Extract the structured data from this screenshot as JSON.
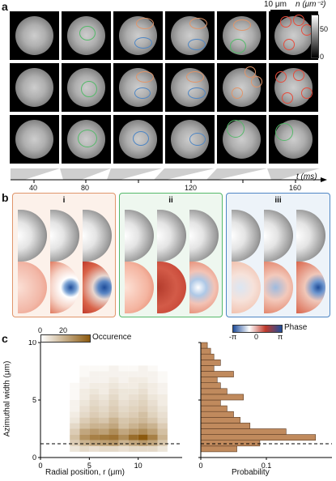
{
  "panel_a": {
    "letter": "a",
    "scale_bar": "10 μm",
    "colorbar": {
      "title": "n (μm⁻²)",
      "ticks": [
        "50",
        "0"
      ]
    },
    "axis": {
      "label": "t (ms)",
      "ticks": [
        "40",
        "80",
        "120",
        "160"
      ]
    }
  },
  "panel_b": {
    "letter": "b",
    "subpanels": [
      {
        "label": "i",
        "border": "#e0956a",
        "bg": "#fcf1ea"
      },
      {
        "label": "ii",
        "border": "#55b96a",
        "bg": "#eef7ef"
      },
      {
        "label": "iii",
        "border": "#4e86c4",
        "bg": "#edf3f9"
      }
    ],
    "phase_bar": {
      "title": "Phase",
      "ticks": [
        "-π",
        "0",
        "π"
      ]
    }
  },
  "panel_c": {
    "letter": "c",
    "occurrence_bar": {
      "title": "Occurence",
      "ticks": [
        "0",
        "20"
      ]
    },
    "colors": {
      "bar": "#c08a5d",
      "bar_edge": "#5a3a22"
    },
    "chart_data": [
      {
        "type": "heatmap",
        "xlabel": "Radial position, r (μm)",
        "ylabel": "Azimuthal width (μm)",
        "xlim": [
          0,
          14.5
        ],
        "ylim": [
          0,
          10
        ],
        "xticks": [
          "0",
          "5",
          "10"
        ],
        "yticks": [
          "0",
          "5",
          "10"
        ],
        "x_bins": [
          3,
          4,
          5,
          6,
          7,
          8,
          9,
          10,
          11,
          12,
          13
        ],
        "y_bins": [
          0.5,
          1.0,
          1.5,
          2.0,
          2.5,
          3.0,
          3.5,
          4.0,
          4.5,
          5.0,
          5.5,
          6.0,
          6.5,
          7.0,
          7.5,
          8.0
        ],
        "counts": [
          [
            4,
            6,
            5,
            6,
            6,
            5,
            6,
            6,
            6,
            4
          ],
          [
            8,
            12,
            14,
            15,
            16,
            12,
            14,
            16,
            14,
            9
          ],
          [
            10,
            17,
            20,
            21,
            22,
            18,
            23,
            26,
            20,
            12
          ],
          [
            8,
            14,
            16,
            15,
            18,
            14,
            16,
            18,
            15,
            10
          ],
          [
            6,
            10,
            12,
            12,
            14,
            10,
            12,
            14,
            12,
            8
          ],
          [
            4,
            8,
            10,
            9,
            12,
            9,
            10,
            11,
            9,
            6
          ],
          [
            3,
            6,
            8,
            7,
            9,
            7,
            8,
            10,
            7,
            5
          ],
          [
            2,
            5,
            7,
            6,
            8,
            6,
            7,
            8,
            6,
            4
          ],
          [
            2,
            4,
            6,
            5,
            7,
            5,
            6,
            7,
            5,
            3
          ],
          [
            1,
            3,
            5,
            4,
            6,
            4,
            5,
            6,
            4,
            3
          ],
          [
            1,
            3,
            4,
            3,
            5,
            4,
            4,
            5,
            3,
            2
          ],
          [
            1,
            2,
            3,
            3,
            4,
            3,
            3,
            4,
            3,
            2
          ],
          [
            0,
            2,
            2,
            2,
            3,
            2,
            3,
            3,
            2,
            1
          ],
          [
            0,
            1,
            2,
            2,
            2,
            2,
            2,
            2,
            2,
            1
          ],
          [
            0,
            1,
            1,
            1,
            2,
            1,
            1,
            2,
            1,
            0
          ]
        ],
        "dashed_line_y": 1.2
      },
      {
        "type": "bar",
        "orientation": "horizontal",
        "xlabel": "Probability",
        "xlim": [
          0,
          0.2
        ],
        "xticks": [
          "0",
          "0.1"
        ],
        "ylim": [
          0,
          10
        ],
        "bins_y_start": [
          0.5,
          1.0,
          1.5,
          2.0,
          2.5,
          3.0,
          3.5,
          4.0,
          4.5,
          5.0,
          5.5,
          6.0,
          6.5,
          7.0,
          7.5,
          8.0,
          8.5,
          9.0,
          9.5
        ],
        "values": [
          0.055,
          0.09,
          0.175,
          0.13,
          0.075,
          0.06,
          0.05,
          0.04,
          0.03,
          0.065,
          0.04,
          0.03,
          0.025,
          0.05,
          0.02,
          0.03,
          0.02,
          0.015,
          0.01
        ],
        "dashed_line_y": 1.2
      }
    ]
  }
}
